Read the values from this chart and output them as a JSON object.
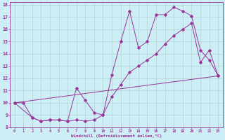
{
  "xlabel": "Windchill (Refroidissement éolien,°C)",
  "xlim": [
    -0.5,
    23.5
  ],
  "ylim": [
    8,
    18.2
  ],
  "xticks": [
    0,
    1,
    2,
    3,
    4,
    5,
    6,
    7,
    8,
    9,
    10,
    11,
    12,
    13,
    14,
    15,
    16,
    17,
    18,
    19,
    20,
    21,
    22,
    23
  ],
  "yticks": [
    8,
    9,
    10,
    11,
    12,
    13,
    14,
    15,
    16,
    17,
    18
  ],
  "bg_color": "#cdeef5",
  "line_color": "#993399",
  "grid_color": "#aacccc",
  "line1_x": [
    0,
    1,
    2,
    3,
    4,
    5,
    6,
    7,
    8,
    9,
    10,
    11,
    12,
    13,
    14,
    15,
    16,
    17,
    18,
    19,
    20,
    21,
    22,
    23
  ],
  "line1_y": [
    10,
    10,
    8.8,
    8.5,
    8.6,
    8.6,
    8.5,
    11.2,
    10.2,
    9.2,
    9.0,
    12.3,
    15.0,
    17.5,
    14.5,
    15.0,
    17.2,
    17.2,
    17.8,
    17.5,
    17.1,
    14.3,
    13.5,
    12.2
  ],
  "line2_x": [
    0,
    2,
    3,
    4,
    5,
    6,
    7,
    8,
    9,
    10,
    11,
    12,
    13,
    14,
    15,
    16,
    17,
    18,
    19,
    20,
    21,
    22,
    23
  ],
  "line2_y": [
    10,
    8.8,
    8.5,
    8.6,
    8.6,
    8.5,
    8.6,
    8.5,
    8.6,
    9.0,
    10.5,
    11.5,
    12.5,
    13.0,
    13.5,
    14.0,
    14.8,
    15.5,
    16.0,
    16.5,
    13.3,
    14.3,
    12.2
  ],
  "line3_x": [
    0,
    23
  ],
  "line3_y": [
    10.0,
    12.2
  ]
}
